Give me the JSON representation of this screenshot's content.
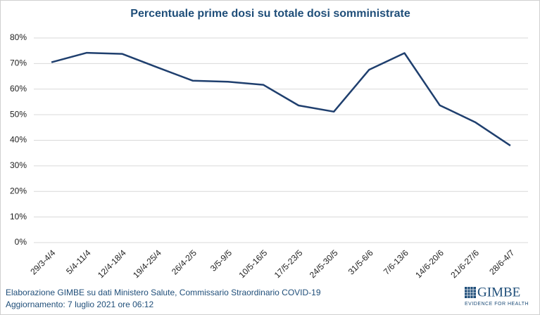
{
  "chart_data": {
    "type": "line",
    "title": "Percentuale prime dosi su totale dosi somministrate",
    "categories": [
      "29/3-4/4",
      "5/4-11/4",
      "12/4-18/4",
      "19/4-25/4",
      "26/4-2/5",
      "3/5-9/5",
      "10/5-16/5",
      "17/5-23/5",
      "24/5-30/5",
      "31/5-6/6",
      "7/6-13/6",
      "14/6-20/6",
      "21/6-27/6",
      "28/6-4/7"
    ],
    "values": [
      70.5,
      74.2,
      73.8,
      68.5,
      63.3,
      62.9,
      61.7,
      53.6,
      51.2,
      67.6,
      74.1,
      53.7,
      47.1,
      37.9
    ],
    "color": "#1f3f6e",
    "ylim": [
      0,
      80
    ],
    "yticks": [
      {
        "value": 0,
        "label": "0%"
      },
      {
        "value": 10,
        "label": "10%"
      },
      {
        "value": 20,
        "label": "20%"
      },
      {
        "value": 30,
        "label": "30%"
      },
      {
        "value": 40,
        "label": "40%"
      },
      {
        "value": 50,
        "label": "50%"
      },
      {
        "value": 60,
        "label": "60%"
      },
      {
        "value": 70,
        "label": "70%"
      },
      {
        "value": 80,
        "label": "80%"
      }
    ],
    "grid": true,
    "source": "Elaborazione GIMBE su dati Ministero Salute, Commissario Straordinario COVID-19",
    "updated": "Aggiornamento: 7 luglio 2021 ore 06:12",
    "logo": "GIMBE",
    "logo_tagline": "EVIDENCE FOR HEALTH"
  }
}
